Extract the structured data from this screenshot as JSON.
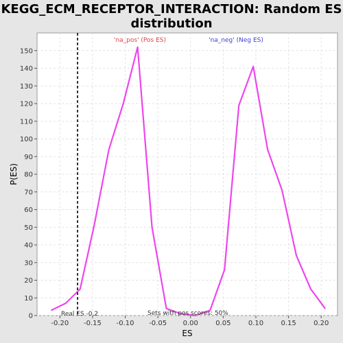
{
  "chart_data": {
    "type": "line",
    "title": "KEGG_ECM_RECEPTOR_INTERACTION: Random ES distribution",
    "title_lines": [
      "KEGG_ECM_RECEPTOR_INTERACTION: Random ES",
      "distribution"
    ],
    "xlabel": "ES",
    "ylabel": "P(ES)",
    "xlim": [
      -0.235,
      0.225
    ],
    "ylim": [
      0,
      160
    ],
    "x_ticks": [
      -0.2,
      -0.15,
      -0.1,
      -0.05,
      0,
      0.05,
      0.1,
      0.15,
      0.2
    ],
    "x_tick_labels": [
      "-0.20",
      "-0.15",
      "-0.10",
      "-0.05",
      "0.00",
      "0.05",
      "0.10",
      "0.15",
      "0.20"
    ],
    "y_ticks": [
      0,
      10,
      20,
      30,
      40,
      50,
      60,
      70,
      80,
      90,
      100,
      110,
      120,
      130,
      140,
      150
    ],
    "y_tick_labels": [
      "0",
      "10",
      "20",
      "30",
      "40",
      "50",
      "60",
      "70",
      "80",
      "90",
      "100",
      "110",
      "120",
      "130",
      "140",
      "150"
    ],
    "grid": true,
    "series": [
      {
        "color": "#ee44ee",
        "x": [
          -0.213,
          -0.191,
          -0.169,
          -0.147,
          -0.125,
          -0.103,
          -0.081,
          -0.059,
          -0.037,
          -0.015,
          0.007,
          0.03,
          0.052,
          0.074,
          0.096,
          0.118,
          0.14,
          0.162,
          0.184,
          0.206
        ],
        "y": [
          3,
          7,
          15,
          52,
          94,
          120,
          152,
          50,
          4,
          1,
          0,
          3,
          26,
          119,
          141,
          94,
          71,
          34,
          15,
          4
        ]
      }
    ],
    "real_es": {
      "value": -0.173,
      "label": "Real ES -0.2",
      "color": "#333333"
    },
    "annotations": {
      "pos_label": "'na_pos' (Pos ES)",
      "pos_color": "#e04040",
      "neg_label": "'na_neg' (Neg ES)",
      "neg_color": "#4040d0",
      "footer": "Sets with pos scores: 50%"
    }
  }
}
